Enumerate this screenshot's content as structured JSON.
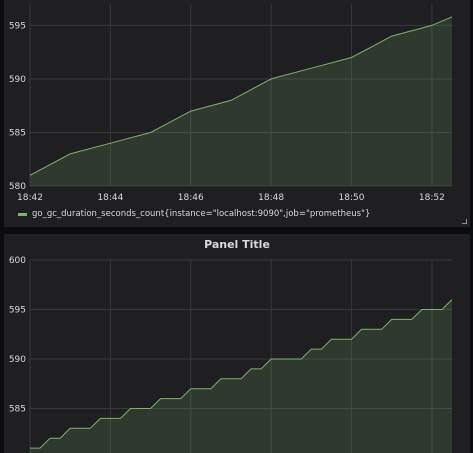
{
  "chart_data": [
    {
      "type": "area",
      "title": "",
      "xlabel": "",
      "ylabel": "",
      "x_ticks": [
        "18:42",
        "18:44",
        "18:46",
        "18:48",
        "18:50",
        "18:52"
      ],
      "y_ticks": [
        580,
        585,
        590,
        595
      ],
      "xlim_minutes": [
        0,
        10.5
      ],
      "ylim": [
        580,
        597
      ],
      "grid": true,
      "legend_position": "bottom-left",
      "series": [
        {
          "name": "go_gc_duration_seconds_count{instance=\"localhost:9090\",job=\"prometheus\"}",
          "color": "#7eb26d",
          "x_minutes": [
            0,
            1,
            2,
            3,
            4,
            5,
            6,
            7,
            8,
            9,
            10,
            10.5
          ],
          "values": [
            581,
            583,
            584,
            585,
            587,
            588,
            590,
            591,
            592,
            594,
            595,
            595.8
          ]
        }
      ]
    },
    {
      "type": "area",
      "title": "Panel Title",
      "xlabel": "",
      "ylabel": "",
      "y_ticks": [
        585,
        590,
        595,
        600
      ],
      "ylim": [
        580.5,
        600
      ],
      "grid": true,
      "series": [
        {
          "color": "#7eb26d",
          "step_minutes": 0.5,
          "values": [
            581,
            581,
            582,
            582,
            583,
            583,
            583,
            584,
            584,
            584,
            585,
            585,
            585,
            586,
            586,
            586,
            587,
            587,
            587,
            588,
            588,
            588,
            589,
            589,
            590,
            590,
            590,
            590,
            591,
            591,
            592,
            592,
            592,
            593,
            593,
            593,
            594,
            594,
            594,
            595,
            595,
            595,
            596
          ]
        }
      ]
    }
  ]
}
